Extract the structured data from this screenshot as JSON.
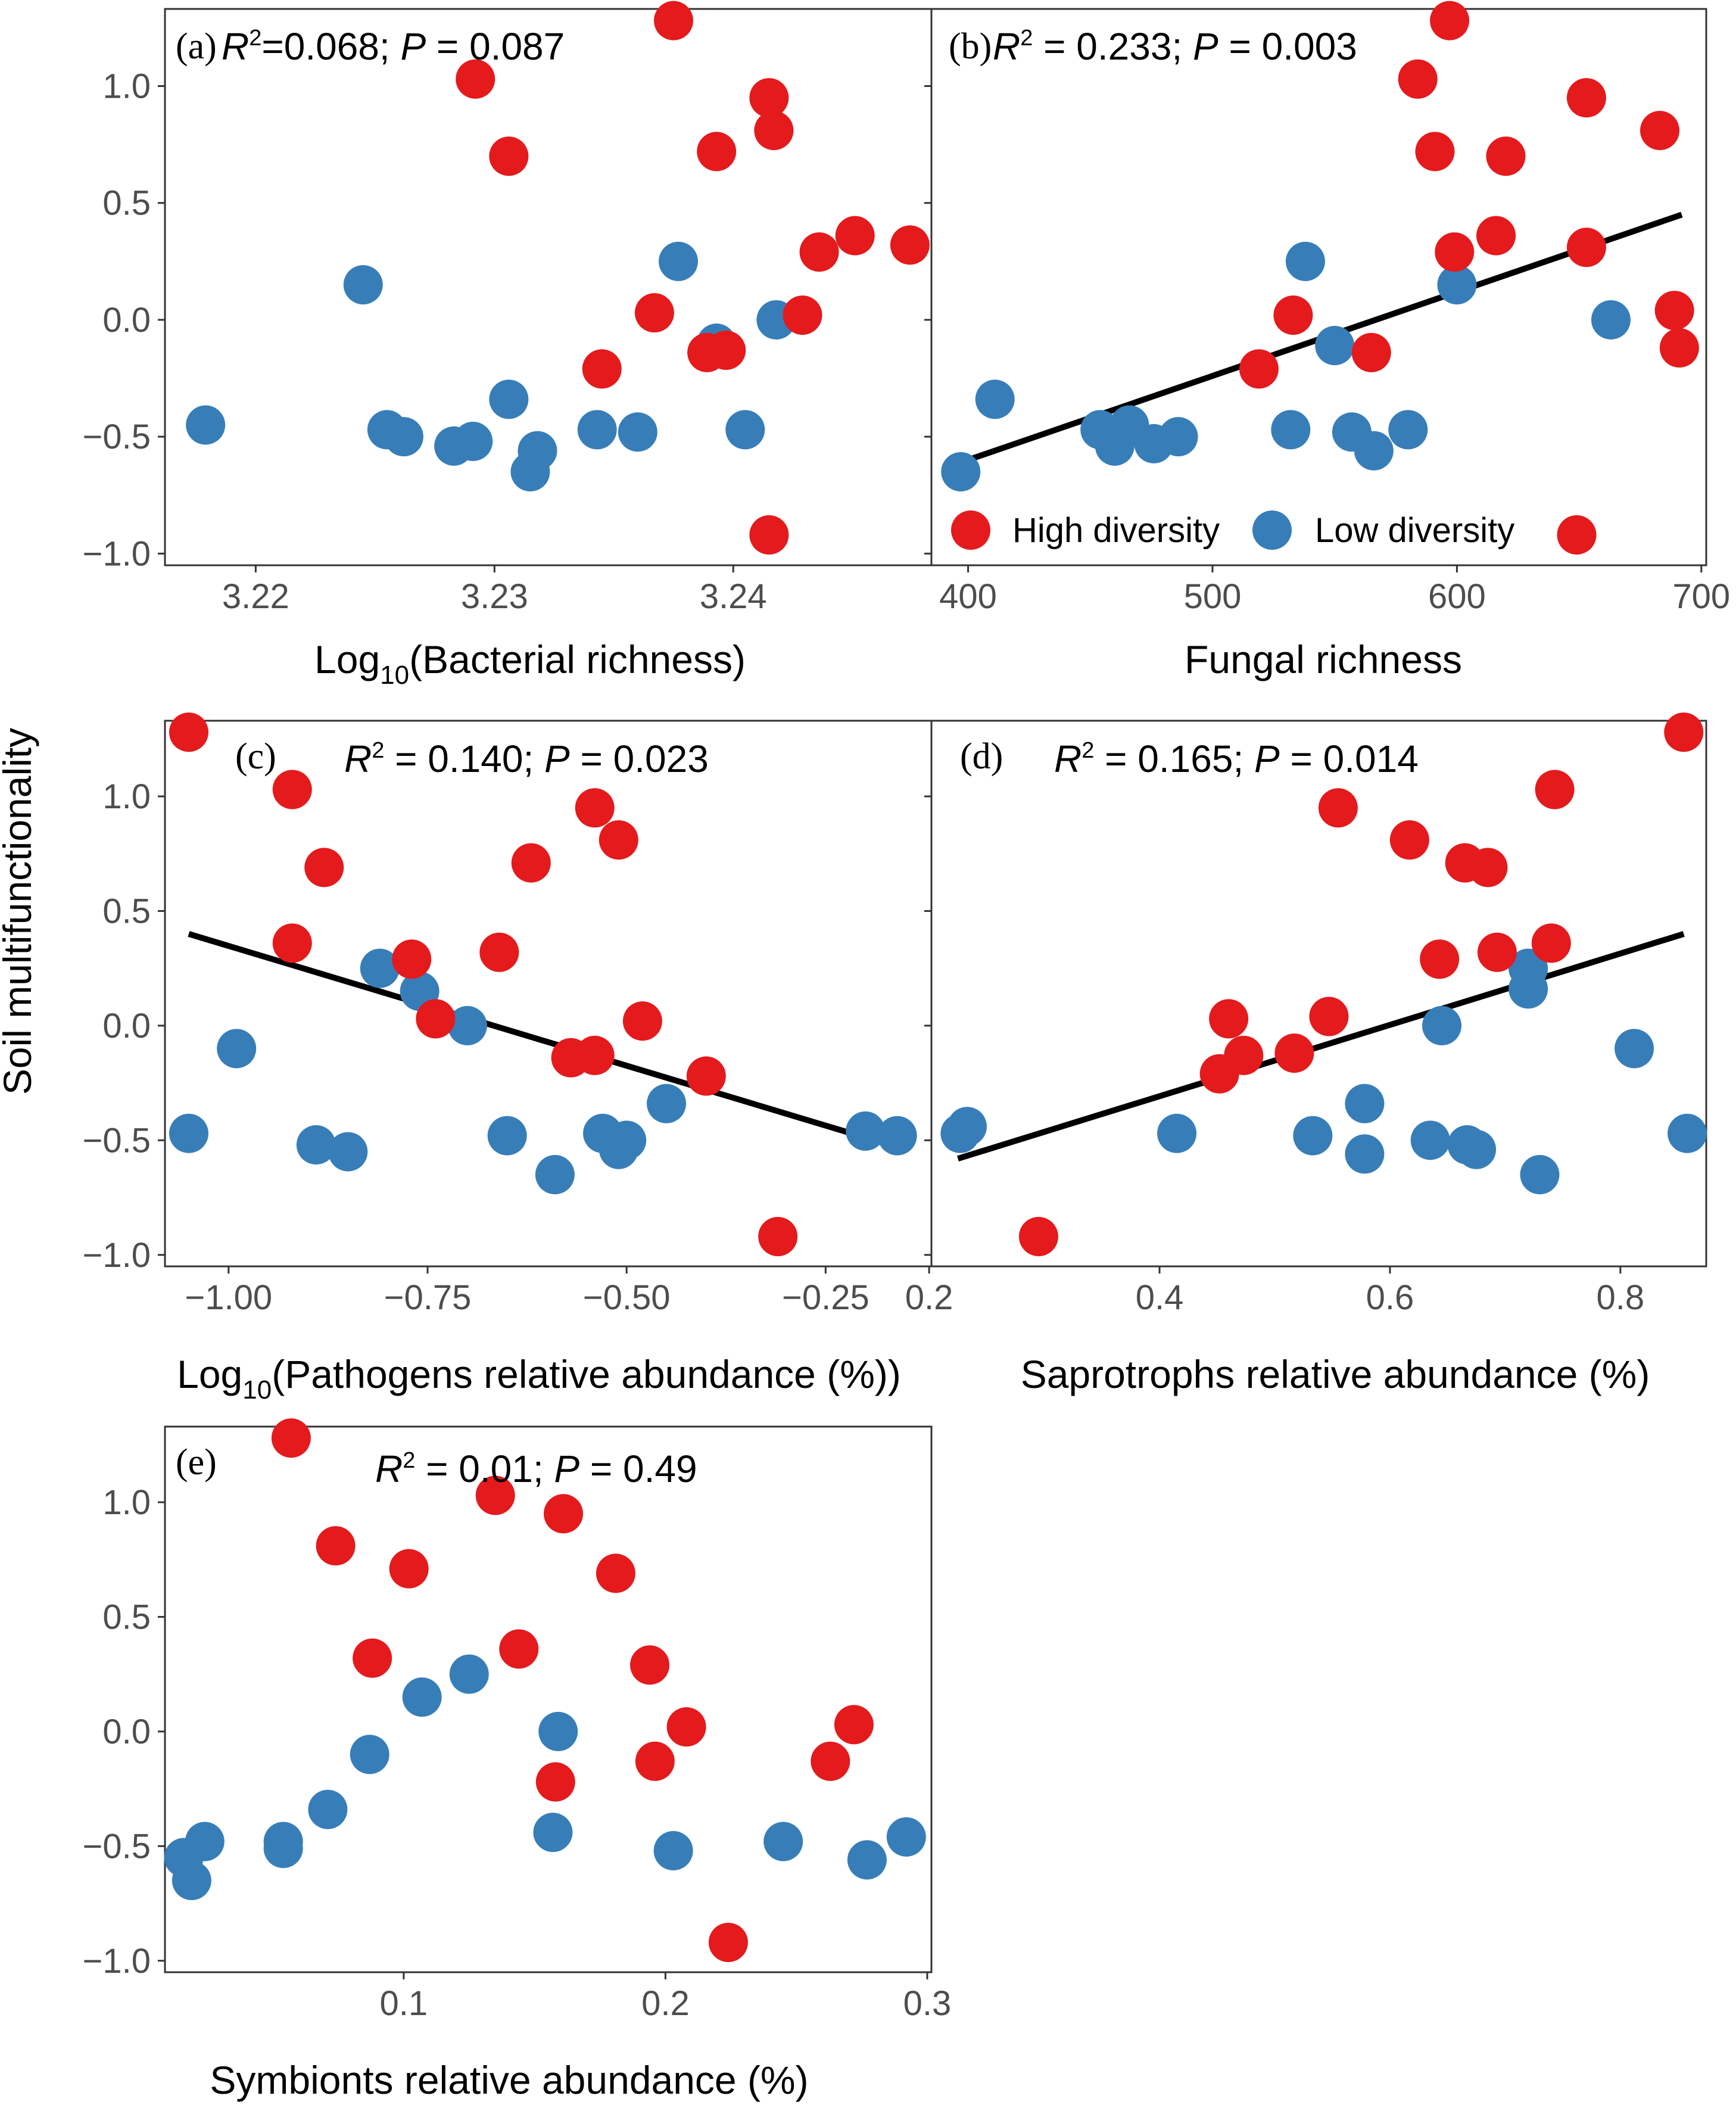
{
  "colors": {
    "high": "#e41a1c",
    "low": "#377eb8",
    "fit": "#000000"
  },
  "shared": {
    "ylabel": "Soil multifunctionality"
  },
  "legend": {
    "high_label": "High diversity",
    "low_label": "Low diversity",
    "placement": "bottom-right of panel b"
  },
  "chart_data": [
    {
      "id": "a",
      "type": "scatter",
      "letter": "(a)",
      "stat": {
        "r2": "=0.068; ",
        "p": " = 0.087"
      },
      "xlabel": {
        "pre": "Log",
        "sub": "10",
        "post": "(Bacterial richness)"
      },
      "xlim": [
        3.2162,
        3.2483
      ],
      "ylim": [
        -1.05,
        1.33
      ],
      "xticks": [
        3.22,
        3.23,
        3.24
      ],
      "xtick_labels": [
        "3.22",
        "3.23",
        "3.24"
      ],
      "yticks": [
        -1.0,
        -0.5,
        0.0,
        0.5,
        1.0
      ],
      "ytick_labels": [
        "−1.0",
        "−0.5",
        "0.0",
        "0.5",
        "1.0"
      ],
      "fit": null,
      "series": [
        {
          "name": "High diversity",
          "color": "#e41a1c",
          "points": [
            [
              3.2375,
              1.28
            ],
            [
              3.2292,
              1.03
            ],
            [
              3.2306,
              0.7
            ],
            [
              3.2393,
              0.72
            ],
            [
              3.2415,
              0.95
            ],
            [
              3.2417,
              0.81
            ],
            [
              3.2451,
              0.36
            ],
            [
              3.2474,
              0.32
            ],
            [
              3.2436,
              0.29
            ],
            [
              3.2367,
              0.03
            ],
            [
              3.2429,
              0.02
            ],
            [
              3.2345,
              -0.21
            ],
            [
              3.2389,
              -0.14
            ],
            [
              3.2397,
              -0.13
            ],
            [
              3.2415,
              -0.92
            ]
          ]
        },
        {
          "name": "Low diversity",
          "color": "#377eb8",
          "points": [
            [
              3.2245,
              0.15
            ],
            [
              3.2377,
              0.25
            ],
            [
              3.2418,
              0.0
            ],
            [
              3.2393,
              -0.1
            ],
            [
              3.2179,
              -0.45
            ],
            [
              3.2255,
              -0.47
            ],
            [
              3.2262,
              -0.5
            ],
            [
              3.2283,
              -0.54
            ],
            [
              3.2291,
              -0.52
            ],
            [
              3.2306,
              -0.34
            ],
            [
              3.2318,
              -0.56
            ],
            [
              3.2315,
              -0.65
            ],
            [
              3.2343,
              -0.47
            ],
            [
              3.236,
              -0.48
            ],
            [
              3.2405,
              -0.47
            ]
          ]
        }
      ]
    },
    {
      "id": "b",
      "type": "scatter",
      "letter": "(b)",
      "stat": {
        "r2": " = 0.233; ",
        "p": " = 0.003"
      },
      "xlabel": {
        "pre": "Fungal richness",
        "sub": "",
        "post": ""
      },
      "xlim": [
        385,
        702
      ],
      "ylim": [
        -1.05,
        1.33
      ],
      "xticks": [
        400,
        500,
        600,
        700
      ],
      "xtick_labels": [
        "400",
        "500",
        "600",
        "700"
      ],
      "yticks": [
        -1.0,
        -0.5,
        0.0,
        0.5,
        1.0
      ],
      "ytick_labels": [
        "−1.0",
        "−0.5",
        "0.0",
        "0.5",
        "1.0"
      ],
      "fit": {
        "x": [
          397,
          692
        ],
        "y": [
          -0.61,
          0.45
        ]
      },
      "series": [
        {
          "name": "High diversity",
          "color": "#e41a1c",
          "points": [
            [
              597,
              1.28
            ],
            [
              584,
              1.03
            ],
            [
              591,
              0.72
            ],
            [
              653,
              0.95
            ],
            [
              683,
              0.81
            ],
            [
              620,
              0.7
            ],
            [
              616,
              0.36
            ],
            [
              599,
              0.29
            ],
            [
              653,
              0.31
            ],
            [
              533,
              0.02
            ],
            [
              689,
              0.04
            ],
            [
              519,
              -0.21
            ],
            [
              565,
              -0.14
            ],
            [
              691,
              -0.12
            ],
            [
              649,
              -0.92
            ]
          ]
        },
        {
          "name": "Low diversity",
          "color": "#377eb8",
          "points": [
            [
              538,
              0.25
            ],
            [
              600,
              0.15
            ],
            [
              663,
              0.0
            ],
            [
              550,
              -0.11
            ],
            [
              411,
              -0.34
            ],
            [
              454,
              -0.47
            ],
            [
              460,
              -0.54
            ],
            [
              466,
              -0.45
            ],
            [
              476,
              -0.53
            ],
            [
              486,
              -0.5
            ],
            [
              532,
              -0.47
            ],
            [
              557,
              -0.48
            ],
            [
              566,
              -0.56
            ],
            [
              580,
              -0.47
            ],
            [
              397,
              -0.65
            ]
          ]
        }
      ]
    },
    {
      "id": "c",
      "type": "scatter",
      "letter": "(c)",
      "stat": {
        "r2": " = 0.140; ",
        "p": " = 0.023"
      },
      "xlabel": {
        "pre": "Log",
        "sub": "10",
        "post": "(Pathogens relative abundance (%))"
      },
      "xlim": [
        -1.0799,
        -0.1171
      ],
      "ylim": [
        -1.05,
        1.33
      ],
      "xticks": [
        -1.0,
        -0.75,
        -0.5,
        -0.25
      ],
      "xtick_labels": [
        "−1.00",
        "−0.75",
        "−0.50",
        "−0.25"
      ],
      "yticks": [
        -1.0,
        -0.5,
        0.0,
        0.5,
        1.0
      ],
      "ytick_labels": [
        "−1.0",
        "−0.5",
        "0.0",
        "0.5",
        "1.0"
      ],
      "fit": {
        "x": [
          -1.05,
          -0.16
        ],
        "y": [
          0.4,
          -0.53
        ]
      },
      "series": [
        {
          "name": "High diversity",
          "color": "#e41a1c",
          "points": [
            [
              -1.05,
              1.28
            ],
            [
              -0.92,
              1.03
            ],
            [
              -0.88,
              0.69
            ],
            [
              -0.92,
              0.36
            ],
            [
              -0.77,
              0.29
            ],
            [
              -0.54,
              0.95
            ],
            [
              -0.51,
              0.81
            ],
            [
              -0.62,
              0.71
            ],
            [
              -0.66,
              0.32
            ],
            [
              -0.74,
              0.03
            ],
            [
              -0.48,
              0.02
            ],
            [
              -0.57,
              -0.14
            ],
            [
              -0.54,
              -0.13
            ],
            [
              -0.4,
              -0.22
            ],
            [
              -0.31,
              -0.92
            ]
          ]
        },
        {
          "name": "Low diversity",
          "color": "#377eb8",
          "points": [
            [
              -0.81,
              0.25
            ],
            [
              -0.76,
              0.15
            ],
            [
              -0.7,
              0.0
            ],
            [
              -0.99,
              -0.1
            ],
            [
              -1.05,
              -0.47
            ],
            [
              -0.89,
              -0.52
            ],
            [
              -0.85,
              -0.55
            ],
            [
              -0.65,
              -0.48
            ],
            [
              -0.59,
              -0.65
            ],
            [
              -0.53,
              -0.47
            ],
            [
              -0.5,
              -0.5
            ],
            [
              -0.51,
              -0.54
            ],
            [
              -0.45,
              -0.34
            ],
            [
              -0.2,
              -0.46
            ],
            [
              -0.16,
              -0.48
            ]
          ]
        }
      ]
    },
    {
      "id": "d",
      "type": "scatter",
      "letter": "(d)",
      "stat": {
        "r2": " = 0.165; ",
        "p": " = 0.014"
      },
      "xlabel": {
        "pre": "Saprotrophs relative abundance (%)",
        "sub": "",
        "post": ""
      },
      "xlim": [
        0.202,
        0.8745
      ],
      "ylim": [
        -1.05,
        1.33
      ],
      "xticks": [
        0.2,
        0.4,
        0.6,
        0.8
      ],
      "xtick_labels": [
        "0.2",
        "0.4",
        "0.6",
        "0.8"
      ],
      "yticks": [
        -1.0,
        -0.5,
        0.0,
        0.5,
        1.0
      ],
      "ytick_labels": [
        "−1.0",
        "−0.5",
        "0.0",
        "0.5",
        "1.0"
      ],
      "fit": {
        "x": [
          0.225,
          0.855
        ],
        "y": [
          -0.58,
          0.4
        ]
      },
      "series": [
        {
          "name": "High diversity",
          "color": "#e41a1c",
          "points": [
            [
              0.855,
              1.28
            ],
            [
              0.743,
              1.03
            ],
            [
              0.555,
              0.95
            ],
            [
              0.617,
              0.81
            ],
            [
              0.665,
              0.71
            ],
            [
              0.685,
              0.69
            ],
            [
              0.74,
              0.36
            ],
            [
              0.693,
              0.32
            ],
            [
              0.643,
              0.29
            ],
            [
              0.46,
              0.03
            ],
            [
              0.547,
              0.04
            ],
            [
              0.473,
              -0.13
            ],
            [
              0.517,
              -0.12
            ],
            [
              0.452,
              -0.21
            ],
            [
              0.295,
              -0.92
            ]
          ]
        },
        {
          "name": "Low diversity",
          "color": "#377eb8",
          "points": [
            [
              0.72,
              0.25
            ],
            [
              0.72,
              0.16
            ],
            [
              0.645,
              0.0
            ],
            [
              0.812,
              -0.1
            ],
            [
              0.227,
              -0.47
            ],
            [
              0.233,
              -0.44
            ],
            [
              0.415,
              -0.47
            ],
            [
              0.533,
              -0.48
            ],
            [
              0.578,
              -0.34
            ],
            [
              0.578,
              -0.56
            ],
            [
              0.635,
              -0.5
            ],
            [
              0.667,
              -0.52
            ],
            [
              0.675,
              -0.54
            ],
            [
              0.73,
              -0.65
            ],
            [
              0.858,
              -0.47
            ]
          ]
        }
      ]
    },
    {
      "id": "e",
      "type": "scatter",
      "letter": "(e)",
      "stat": {
        "r2": " = 0.01; ",
        "p": " = 0.49"
      },
      "xlabel": {
        "pre": "Symbionts relative abundance (%)",
        "sub": "",
        "post": ""
      },
      "xlim": [
        0.0088,
        0.3016
      ],
      "ylim": [
        -1.05,
        1.33
      ],
      "xticks": [
        0.1,
        0.2,
        0.3
      ],
      "xtick_labels": [
        "0.1",
        "0.2",
        "0.3"
      ],
      "yticks": [
        -1.0,
        -0.5,
        0.0,
        0.5,
        1.0
      ],
      "ytick_labels": [
        "−1.0",
        "−0.5",
        "0.0",
        "0.5",
        "1.0"
      ],
      "fit": null,
      "series": [
        {
          "name": "High diversity",
          "color": "#e41a1c",
          "points": [
            [
              0.057,
              1.28
            ],
            [
              0.135,
              1.03
            ],
            [
              0.161,
              0.95
            ],
            [
              0.074,
              0.81
            ],
            [
              0.102,
              0.71
            ],
            [
              0.181,
              0.69
            ],
            [
              0.144,
              0.36
            ],
            [
              0.088,
              0.32
            ],
            [
              0.194,
              0.29
            ],
            [
              0.208,
              0.02
            ],
            [
              0.272,
              0.03
            ],
            [
              0.196,
              -0.13
            ],
            [
              0.263,
              -0.13
            ],
            [
              0.158,
              -0.22
            ],
            [
              0.224,
              -0.92
            ]
          ]
        },
        {
          "name": "Low diversity",
          "color": "#377eb8",
          "points": [
            [
              0.125,
              0.25
            ],
            [
              0.107,
              0.15
            ],
            [
              0.159,
              0.0
            ],
            [
              0.087,
              -0.1
            ],
            [
              0.071,
              -0.34
            ],
            [
              0.157,
              -0.44
            ],
            [
              0.203,
              -0.52
            ],
            [
              0.054,
              -0.48
            ],
            [
              0.054,
              -0.51
            ],
            [
              0.024,
              -0.48
            ],
            [
              0.016,
              -0.55
            ],
            [
              0.019,
              -0.65
            ],
            [
              0.245,
              -0.48
            ],
            [
              0.277,
              -0.56
            ],
            [
              0.292,
              -0.46
            ]
          ]
        }
      ]
    }
  ]
}
